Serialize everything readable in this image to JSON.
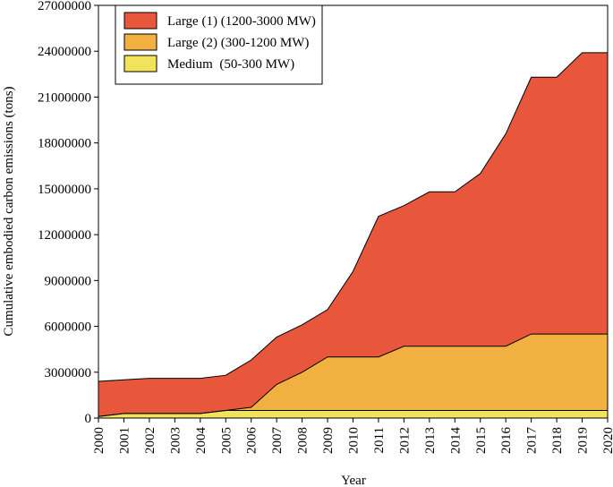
{
  "chart_data": {
    "type": "area",
    "stacked": true,
    "title": "",
    "xlabel": "Year",
    "ylabel": "Cumulative embodied carbon emissions (tons)",
    "ylim": [
      0,
      27000000
    ],
    "yticks": [
      0,
      3000000,
      6000000,
      9000000,
      12000000,
      15000000,
      18000000,
      21000000,
      24000000,
      27000000
    ],
    "ytick_labels": [
      "0",
      "3000000",
      "6000000",
      "9000000",
      "12000000",
      "15000000",
      "18000000",
      "21000000",
      "24000000",
      "27000000"
    ],
    "categories": [
      "2000",
      "2001",
      "2002",
      "2003",
      "2004",
      "2005",
      "2006",
      "2007",
      "2008",
      "2009",
      "2010",
      "2011",
      "2012",
      "2013",
      "2014",
      "2015",
      "2016",
      "2017",
      "2018",
      "2019",
      "2020"
    ],
    "legend_position": "top-left",
    "series": [
      {
        "name": "Medium  (50-300 MW)",
        "color": "#f2e45a",
        "values": [
          100000,
          300000,
          300000,
          300000,
          300000,
          500000,
          500000,
          500000,
          500000,
          500000,
          500000,
          500000,
          500000,
          500000,
          500000,
          500000,
          500000,
          500000,
          500000,
          500000,
          500000
        ]
      },
      {
        "name": "Large (2) (300-1200 MW)",
        "color": "#f1b141",
        "values": [
          0,
          0,
          0,
          0,
          0,
          0,
          200000,
          1700000,
          2500000,
          3500000,
          3500000,
          3500000,
          4200000,
          4200000,
          4200000,
          4200000,
          4200000,
          5000000,
          5000000,
          5000000,
          5000000
        ]
      },
      {
        "name": "Large (1) (1200-3000 MW)",
        "color": "#e8573c",
        "values": [
          2300000,
          2200000,
          2300000,
          2300000,
          2300000,
          2300000,
          3100000,
          3100000,
          3100000,
          3100000,
          5600000,
          9200000,
          9200000,
          10100000,
          10100000,
          11300000,
          13900000,
          16800000,
          16800000,
          18400000,
          18400000
        ]
      }
    ]
  }
}
